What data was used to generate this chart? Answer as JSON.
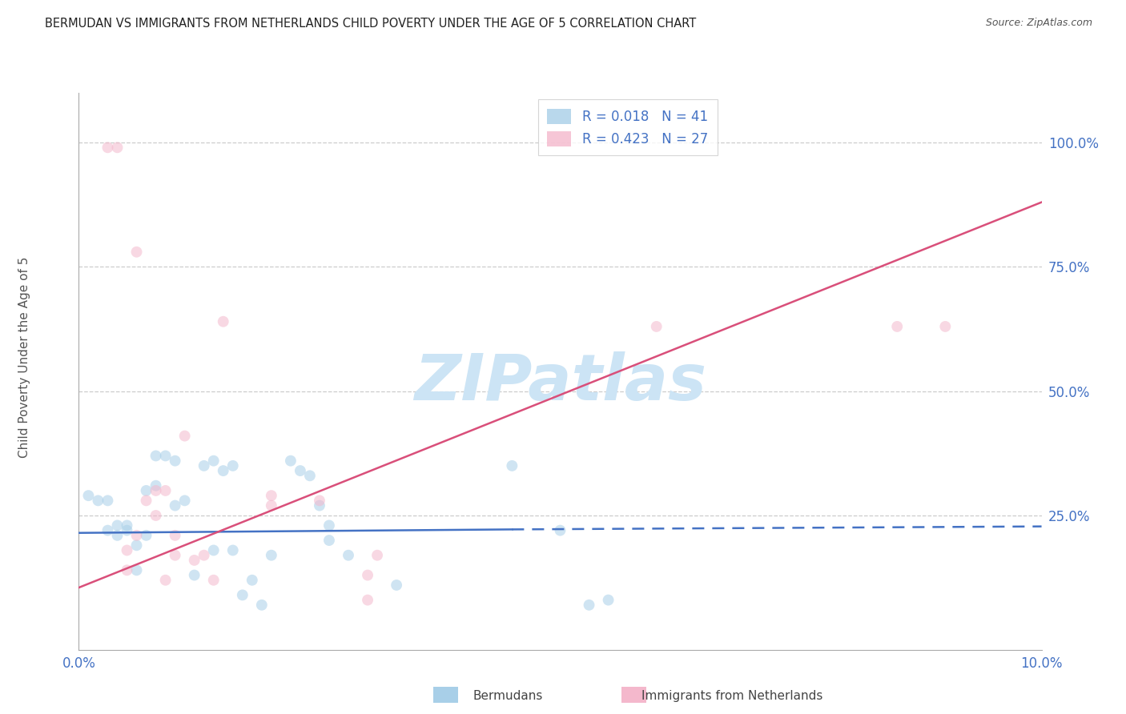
{
  "title": "BERMUDAN VS IMMIGRANTS FROM NETHERLANDS CHILD POVERTY UNDER THE AGE OF 5 CORRELATION CHART",
  "source": "Source: ZipAtlas.com",
  "ylabel": "Child Poverty Under the Age of 5",
  "watermark_text": "ZIPatlas",
  "legend_entry1": "R = 0.018   N = 41",
  "legend_entry2": "R = 0.423   N = 27",
  "legend_label1": "Bermudans",
  "legend_label2": "Immigrants from Netherlands",
  "blue_color": "#a8cfe8",
  "pink_color": "#f4b8cc",
  "blue_line_color": "#4472c4",
  "pink_line_color": "#d94f7a",
  "axis_tick_color": "#4472c4",
  "title_color": "#222222",
  "source_color": "#555555",
  "ylabel_color": "#555555",
  "grid_color": "#cccccc",
  "bg_color": "#ffffff",
  "watermark_color": "#cce4f5",
  "legend_text_color": "#4472c4",
  "legend_n_color": "#333333",
  "blue_scatter": [
    [
      0.001,
      0.29
    ],
    [
      0.002,
      0.28
    ],
    [
      0.003,
      0.28
    ],
    [
      0.003,
      0.22
    ],
    [
      0.004,
      0.23
    ],
    [
      0.004,
      0.21
    ],
    [
      0.005,
      0.22
    ],
    [
      0.005,
      0.23
    ],
    [
      0.006,
      0.14
    ],
    [
      0.006,
      0.19
    ],
    [
      0.007,
      0.21
    ],
    [
      0.007,
      0.3
    ],
    [
      0.008,
      0.37
    ],
    [
      0.008,
      0.31
    ],
    [
      0.009,
      0.37
    ],
    [
      0.01,
      0.36
    ],
    [
      0.01,
      0.27
    ],
    [
      0.011,
      0.28
    ],
    [
      0.012,
      0.13
    ],
    [
      0.013,
      0.35
    ],
    [
      0.014,
      0.18
    ],
    [
      0.014,
      0.36
    ],
    [
      0.015,
      0.34
    ],
    [
      0.016,
      0.35
    ],
    [
      0.016,
      0.18
    ],
    [
      0.017,
      0.09
    ],
    [
      0.018,
      0.12
    ],
    [
      0.019,
      0.07
    ],
    [
      0.02,
      0.17
    ],
    [
      0.022,
      0.36
    ],
    [
      0.023,
      0.34
    ],
    [
      0.024,
      0.33
    ],
    [
      0.025,
      0.27
    ],
    [
      0.026,
      0.23
    ],
    [
      0.026,
      0.2
    ],
    [
      0.028,
      0.17
    ],
    [
      0.033,
      0.11
    ],
    [
      0.045,
      0.35
    ],
    [
      0.05,
      0.22
    ],
    [
      0.053,
      0.07
    ],
    [
      0.055,
      0.08
    ]
  ],
  "pink_scatter": [
    [
      0.003,
      0.99
    ],
    [
      0.004,
      0.99
    ],
    [
      0.005,
      0.18
    ],
    [
      0.005,
      0.14
    ],
    [
      0.006,
      0.21
    ],
    [
      0.006,
      0.78
    ],
    [
      0.007,
      0.28
    ],
    [
      0.008,
      0.25
    ],
    [
      0.008,
      0.3
    ],
    [
      0.009,
      0.3
    ],
    [
      0.009,
      0.12
    ],
    [
      0.01,
      0.21
    ],
    [
      0.01,
      0.17
    ],
    [
      0.011,
      0.41
    ],
    [
      0.012,
      0.16
    ],
    [
      0.013,
      0.17
    ],
    [
      0.014,
      0.12
    ],
    [
      0.015,
      0.64
    ],
    [
      0.02,
      0.29
    ],
    [
      0.02,
      0.27
    ],
    [
      0.025,
      0.28
    ],
    [
      0.03,
      0.13
    ],
    [
      0.03,
      0.08
    ],
    [
      0.031,
      0.17
    ],
    [
      0.06,
      0.63
    ],
    [
      0.085,
      0.63
    ],
    [
      0.09,
      0.63
    ]
  ],
  "blue_line": {
    "x0": 0.0,
    "x1": 0.045,
    "y0": 0.215,
    "y1": 0.222,
    "xd0": 0.045,
    "xd1": 0.1,
    "yd0": 0.222,
    "yd1": 0.228
  },
  "pink_line": {
    "x0": 0.0,
    "x1": 0.1,
    "y0": 0.105,
    "y1": 0.88
  },
  "xlim": [
    0.0,
    0.1
  ],
  "ylim": [
    -0.02,
    1.1
  ],
  "ytick_vals": [
    0.25,
    0.5,
    0.75,
    1.0
  ],
  "xtick_vals": [
    0.0,
    0.1
  ],
  "xtick_labels": [
    "0.0%",
    "10.0%"
  ],
  "marker_size": 100,
  "marker_alpha": 0.55
}
